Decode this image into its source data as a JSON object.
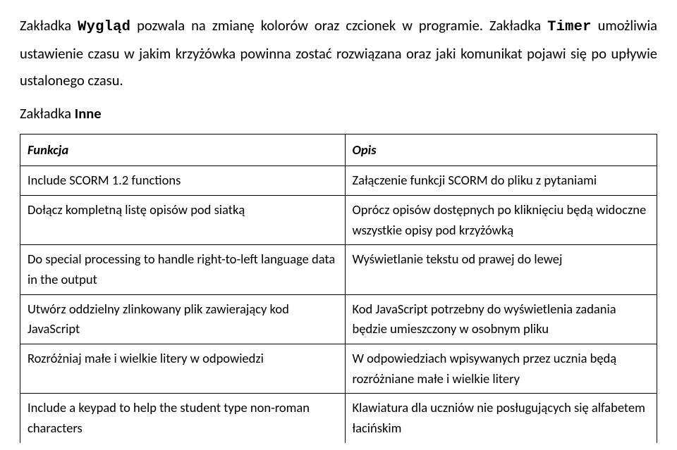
{
  "para_parts": {
    "p0": "Zakładka ",
    "p1": "Wygląd",
    "p2": " pozwala na zmianę kolorów oraz czcionek w programie. Zakładka ",
    "p3": "Timer",
    "p4": " umożliwia ustawienie czasu w jakim krzyżówka powinna zostać rozwiązana oraz jaki komunikat pojawi się po upływie ustalonego czasu."
  },
  "section_parts": {
    "s0": "Zakładka ",
    "s1": "Inne"
  },
  "table": {
    "headers": {
      "col1": "Funkcja",
      "col2": "Opis"
    },
    "rows": [
      {
        "c1": "Include SCORM 1.2 functions",
        "c2": "Załączenie funkcji SCORM do pliku z pytaniami"
      },
      {
        "c1": "Dołącz kompletną listę opisów pod siatką",
        "c2": "Oprócz opisów dostępnych po kliknięciu będą widoczne wszystkie opisy pod krzyżówką"
      },
      {
        "c1": "Do special processing to handle right-to-left language data in the output",
        "c2": "Wyświetlanie tekstu od prawej do lewej"
      },
      {
        "c1": "Utwórz oddzielny zlinkowany plik zawierający kod JavaScript",
        "c2": "Kod JavaScript potrzebny do wyświetlenia zadania będzie umieszczony w osobnym pliku"
      },
      {
        "c1": "Rozróżniaj małe i wielkie litery w odpowiedzi",
        "c2": "W odpowiedziach wpisywanych przez ucznia będą rozróżniane małe i wielkie litery"
      },
      {
        "c1": "Include a keypad to help the student type non-roman characters",
        "c2": "Klawiatura dla uczniów nie posługujących się alfabetem łacińskim"
      }
    ]
  }
}
